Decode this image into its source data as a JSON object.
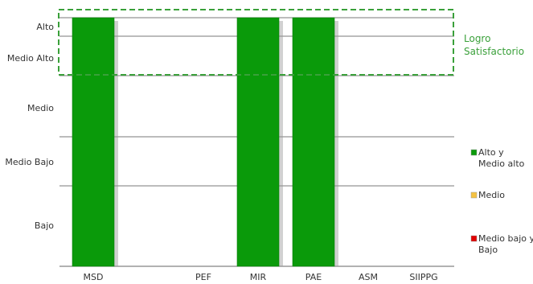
{
  "chart_data": {
    "type": "bar",
    "categories": [
      "MSD",
      "PEF",
      "MIR",
      "PAE",
      "ASM",
      "SIIPPG"
    ],
    "levels": [
      "Bajo",
      "Medio Bajo",
      "Medio",
      "Medio  Alto",
      "Alto"
    ],
    "values": [
      5,
      0,
      5,
      5,
      0,
      0
    ],
    "ylim": [
      0,
      5
    ],
    "grid": true,
    "bar_color": "#0a9a0a",
    "annotation": {
      "lines": [
        "Logro",
        "Satisfactorio"
      ],
      "range": [
        "Medio  Alto",
        "Alto"
      ],
      "color": "#3aa03a"
    },
    "legend": [
      {
        "lines": [
          "Alto y",
          "Medio alto"
        ],
        "color": "#0a9a0a"
      },
      {
        "lines": [
          "Medio"
        ],
        "color": "#f5c242"
      },
      {
        "lines": [
          "Medio bajo y",
          "Bajo"
        ],
        "color": "#e00000"
      }
    ],
    "legend_position": "right"
  }
}
